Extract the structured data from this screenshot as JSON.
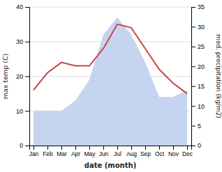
{
  "chart_data": {
    "type": "line",
    "categories": [
      "Jan",
      "Feb",
      "Mar",
      "Apr",
      "May",
      "Jun",
      "Jul",
      "Aug",
      "Sep",
      "Oct",
      "Nov",
      "Dec"
    ],
    "series": [
      {
        "type": "area",
        "color": "#c5d5f0",
        "values": [
          10,
          10,
          10,
          13,
          19,
          32,
          37,
          32,
          24,
          14,
          14,
          16
        ]
      },
      {
        "type": "line",
        "color": "#cc4444",
        "values": [
          16,
          21,
          24,
          23,
          23,
          28,
          35,
          34,
          28,
          22,
          18,
          15
        ]
      }
    ],
    "xlabel": "date (month)",
    "ylabel": "max temp (C)",
    "y2label": "med. precipitation (kg/m2)",
    "ylim": [
      0,
      40
    ],
    "yticks": [
      0,
      10,
      20,
      30,
      40
    ],
    "y2lim": [
      0,
      35
    ],
    "y2ticks": [
      0,
      5,
      10,
      15,
      20,
      25,
      30,
      35
    ],
    "grid": true
  }
}
